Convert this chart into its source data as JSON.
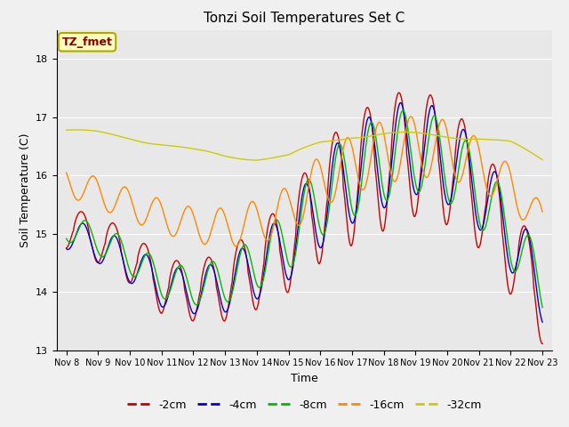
{
  "title": "Tonzi Soil Temperatures Set C",
  "xlabel": "Time",
  "ylabel": "Soil Temperature (C)",
  "ylim": [
    13.0,
    18.5
  ],
  "x_tick_labels": [
    "Nov 8",
    "Nov 9",
    "Nov 10",
    "Nov 11",
    "Nov 12",
    "Nov 13",
    "Nov 14",
    "Nov 15",
    "Nov 16",
    "Nov 17",
    "Nov 18",
    "Nov 19",
    "Nov 20",
    "Nov 21",
    "Nov 22",
    "Nov 23"
  ],
  "legend_labels": [
    "-2cm",
    "-4cm",
    "-8cm",
    "-16cm",
    "-32cm"
  ],
  "line_colors": [
    "#cc0000",
    "#0000cc",
    "#00bb00",
    "#ff8800",
    "#cccc00"
  ],
  "annotation_text": "TZ_fmet",
  "annotation_color": "#880000",
  "annotation_bg": "#ffffbb",
  "fig_bg": "#f0f0f0",
  "plot_bg": "#e8e8e8"
}
